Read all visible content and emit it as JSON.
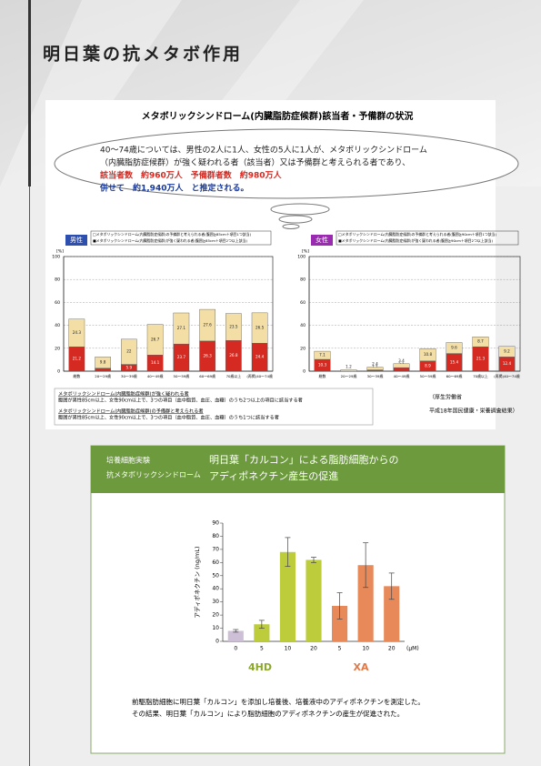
{
  "header": {
    "title": "明日葉の抗メタボ作用"
  },
  "survey": {
    "title": "メタボリックシンドローム(内臓脂肪症候群)該当者・予備群の状況",
    "summary": [
      "40〜74歳については、男性の2人に1人、女性の5人に1人が、メタボリックシンドローム",
      "（内臓脂肪症候群）が強く疑われる者（該当者）又は予備群と考えられる者であり、",
      "該当者数　約960万人　予備群者数　約980万人",
      "併せて　約1,940万人　と推定される。"
    ],
    "notes": [
      "メタボリックシンドローム(内臓脂肪症候群)が強く疑われる者",
      "腹囲が男性85cm以上、女性90cm以上で、3つの項目（血中脂質、血圧、血糖）のうち2つ以上の項目に該当する者",
      "メタボリックシンドローム(内臓脂肪症候群)の予備群と考えられる者",
      "腹囲が男性85cm以上、女性90cm以上で、3つの項目（血中脂質、血圧、血糖）のうち1つに該当する者"
    ],
    "source": [
      "（厚生労働省",
      "平成18年国民健康・栄養調査結果）"
    ]
  },
  "experiment": {
    "tag": [
      "培養細胞実験",
      "抗メタボリックシンドローム"
    ],
    "heading": [
      "明日葉「カルコン」による脂肪細胞からの",
      "アディポネクチン産生の促進"
    ],
    "caption": [
      "前駆脂肪細胞に明日葉「カルコン」を添加し培養後、培養液中のアディポネクチンを測定した。",
      "その結果、明日葉「カルコン」により脂肪細胞のアディポネクチンの産生が促進された。"
    ]
  },
  "chart_data": [
    {
      "type": "bar",
      "stacked": true,
      "badge": "男性",
      "ylabel": "[%]",
      "categories": [
        "総数",
        "20〜29歳",
        "30〜39歳",
        "40〜49歳",
        "50〜59歳",
        "60〜69歳",
        "70歳以上",
        "(再掲)40〜74歳"
      ],
      "series": [
        {
          "name": "■メタボリックシンドローム(内臓脂肪症候群)が強く疑われる者(腹囲≧85cm＋項目2つ以上該当)",
          "color": "#d42a22",
          "values": [
            21.2,
            2.6,
            5.9,
            14.1,
            23.7,
            26.3,
            26.8,
            24.4
          ]
        },
        {
          "name": "□メタボリックシンドローム(内臓脂肪症候群)の予備群と考えられる者(腹囲≧85cm＋項目1つ該当)",
          "color": "#f3dfa6",
          "values": [
            24.3,
            9.8,
            22.0,
            26.7,
            27.1,
            27.6,
            23.5,
            26.5
          ]
        }
      ],
      "ylim": [
        0,
        100
      ],
      "yticks": [
        0,
        20,
        40,
        60,
        80,
        100
      ],
      "grid": true
    },
    {
      "type": "bar",
      "stacked": true,
      "badge": "女性",
      "ylabel": "[%]",
      "categories": [
        "総数",
        "20〜29歳",
        "30〜39歳",
        "40〜49歳",
        "50〜59歳",
        "60〜69歳",
        "70歳以上",
        "(再掲)40〜74歳"
      ],
      "series": [
        {
          "name": "■メタボリックシンドローム(内臓脂肪症候群)が強く疑われる者(腹囲≧90cm＋項目2つ以上該当)",
          "color": "#d42a22",
          "values": [
            10.3,
            0,
            1.1,
            3.1,
            8.9,
            15.4,
            21.3,
            12.4
          ]
        },
        {
          "name": "□メタボリックシンドローム(内臓脂肪症候群)の予備群と考えられる者(腹囲≧90cm＋項目1つ該当)",
          "color": "#f3dfa6",
          "values": [
            7.1,
            1.2,
            2.4,
            3.4,
            10.8,
            9.6,
            8.7,
            9.2
          ]
        }
      ],
      "ylim": [
        0,
        100
      ],
      "yticks": [
        0,
        20,
        40,
        60,
        80,
        100
      ],
      "grid": true
    },
    {
      "type": "bar",
      "ylabel": "アディポネクチン (ng/mL)",
      "categories": [
        "0",
        "5",
        "10",
        "20",
        "5",
        "10",
        "20"
      ],
      "unit": "(μM)",
      "groups": [
        "4HD",
        "XA"
      ],
      "values": [
        8,
        13,
        68,
        62,
        27,
        58,
        42
      ],
      "errors": [
        1,
        3,
        11,
        2,
        10,
        17,
        10
      ],
      "colors": [
        "#cdbfd6",
        "#bccc3a",
        "#bccc3a",
        "#bccc3a",
        "#e8895a",
        "#e8895a",
        "#e8895a"
      ],
      "ylim": [
        0,
        90
      ],
      "yticks": [
        0,
        10,
        20,
        30,
        40,
        50,
        60,
        70,
        80,
        90
      ]
    }
  ]
}
